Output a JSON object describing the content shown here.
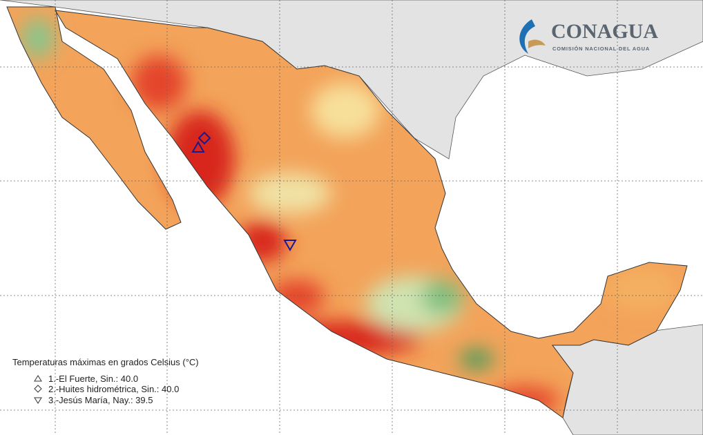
{
  "logo": {
    "name": "CONAGUA",
    "subtitle": "COMISIÓN NACIONAL DEL AGUA"
  },
  "legend": {
    "title": "Temperaturas máximas en grados Celsius (°C)",
    "entries": [
      "1.-El Fuerte, Sin.: 40.0",
      "2.-Huites hidrométrica, Sin.: 40.0",
      "3.-Jesús María, Nay.: 39.5"
    ]
  }
}
